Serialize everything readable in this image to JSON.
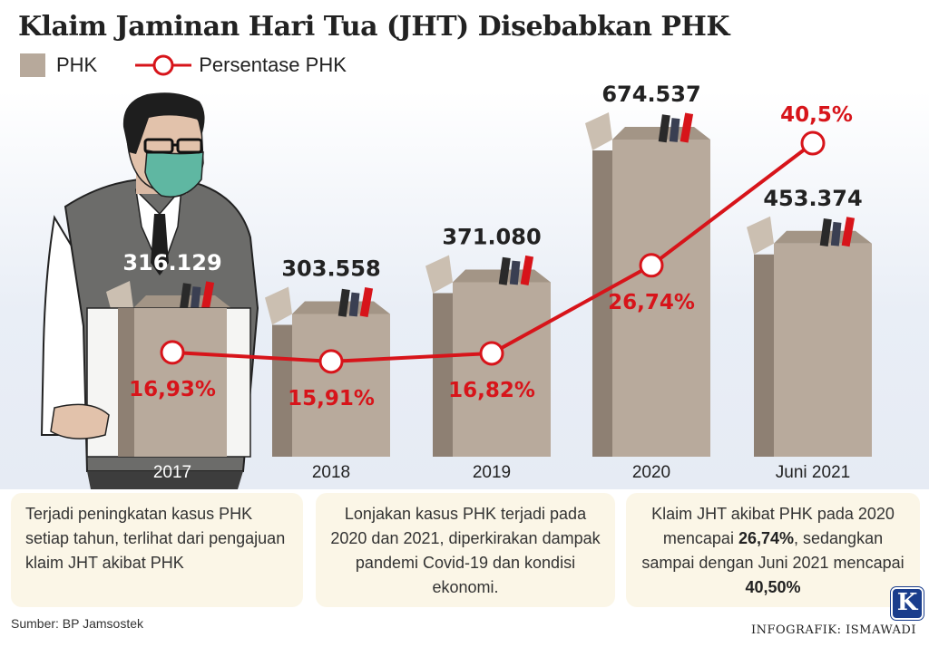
{
  "title": "Klaim Jaminan Hari Tua (JHT) Disebabkan PHK",
  "legend": {
    "bar_label": "PHK",
    "line_label": "Persentase PHK"
  },
  "colors": {
    "box_front": "#b8aa9c",
    "box_side": "#8e8073",
    "box_flap": "#cbbfb1",
    "line": "#d7141a",
    "text_dark": "#222222",
    "info_bg": "#fbf6e7"
  },
  "chart_data": {
    "type": "bar",
    "categories": [
      "2017",
      "2018",
      "2019",
      "2020",
      "Juni 2021"
    ],
    "series": [
      {
        "name": "PHK",
        "values": [
          316129,
          303558,
          371080,
          674537,
          453374
        ],
        "labels": [
          "316.129",
          "303.558",
          "371.080",
          "674.537",
          "453.374"
        ]
      },
      {
        "name": "Persentase PHK",
        "values": [
          16.93,
          15.91,
          16.82,
          26.74,
          40.5
        ],
        "labels": [
          "16,93%",
          "15,91%",
          "16,82%",
          "26,74%",
          "40,5%"
        ]
      }
    ]
  },
  "info": {
    "box1": "Terjadi peningkatan kasus PHK setiap tahun, terlihat dari pengajuan klaim JHT akibat PHK",
    "box2": "Lonjakan kasus PHK terjadi pada 2020 dan 2021, diperkirakan dampak pandemi Covid-19 dan kondisi ekonomi.",
    "box3_pre": "Klaim JHT akibat PHK pada 2020 mencapai",
    "box3_v1": "26,74%",
    "box3_mid": ", sedangkan sampai dengan Juni 2021 mencapai",
    "box3_v2": "40,50%"
  },
  "source": "Sumber: BP Jamsostek",
  "credit": "INFOGRAFIK: ISMAWADI",
  "logo_letter": "K"
}
